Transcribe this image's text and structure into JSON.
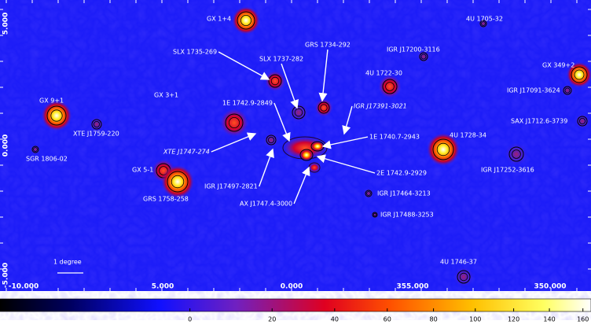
{
  "sources": [
    {
      "label": "GX 1+4"
    },
    {
      "label": "4U 1705-32"
    },
    {
      "label": "GRS 1734-292"
    },
    {
      "label": "IGR J17200-3116"
    },
    {
      "label": "SLX 1735-269"
    },
    {
      "label": "SLX 1737-282"
    },
    {
      "label": "GX 349+2"
    },
    {
      "label": "4U 1722-30"
    },
    {
      "label": "GX 9+1"
    },
    {
      "label": "GX 3+1"
    },
    {
      "label": "1E 1742.9-2849"
    },
    {
      "label": "IGR J17391-3021"
    },
    {
      "label": "IGR J17091-3624"
    },
    {
      "label": "XTE J1759-220"
    },
    {
      "label": "SAX J1712.6-3739"
    },
    {
      "label": "1E 1740.7-2943"
    },
    {
      "label": "XTE J1747-274"
    },
    {
      "label": "4U 1728-34"
    },
    {
      "label": "SGR 1806-02"
    },
    {
      "label": "GX 5-1"
    },
    {
      "label": "IGR J17252-3616"
    },
    {
      "label": "2E 1742.9-2929"
    },
    {
      "label": "IGR J17497-2821"
    },
    {
      "label": "GRS 1758-258"
    },
    {
      "label": "AX J1747.4-3000"
    },
    {
      "label": "IGR J17464-3213"
    },
    {
      "label": "IGR J17488-3253"
    },
    {
      "label": "4U 1746-37"
    }
  ],
  "axes": {
    "left": [
      "5.000",
      "0.000",
      "-5.000"
    ],
    "bottom": [
      "-10.000",
      "5.000",
      "0.000",
      "355.000",
      "350.000"
    ]
  },
  "scale_bar": "1 degree",
  "colorbar": {
    "scale": "sqrt",
    "lim": [
      -19,
      165
    ],
    "ticks": [
      0,
      20,
      40,
      60,
      80,
      100,
      120,
      140,
      160
    ]
  }
}
